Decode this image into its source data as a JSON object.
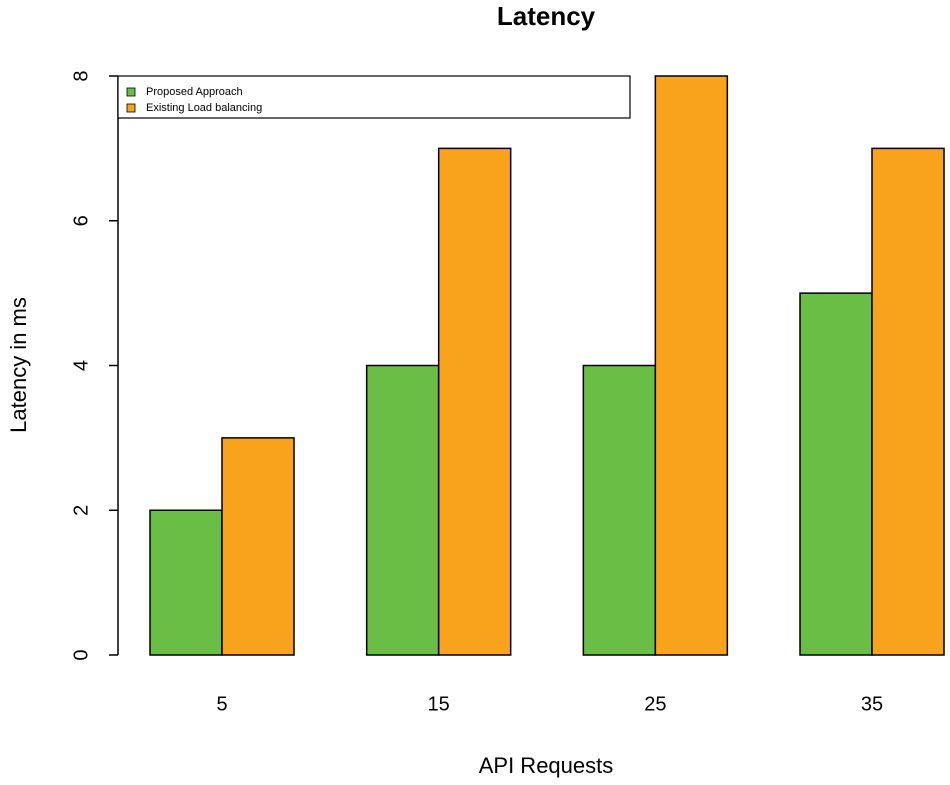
{
  "chart_data": {
    "type": "bar",
    "title": "Latency",
    "x_label": "API Requests",
    "y_label": "Latency in ms",
    "categories": [
      "5",
      "15",
      "25",
      "35"
    ],
    "series": [
      {
        "name": "Proposed Approach",
        "color": "#6abd45",
        "values": [
          2,
          4,
          4,
          5
        ]
      },
      {
        "name": "Existing Load balancing",
        "color": "#f9a21b",
        "values": [
          3,
          7,
          8,
          7
        ]
      }
    ],
    "ylim": [
      0,
      8
    ],
    "yticks": [
      0,
      2,
      4,
      6,
      8
    ],
    "legend_position": "topleft"
  }
}
